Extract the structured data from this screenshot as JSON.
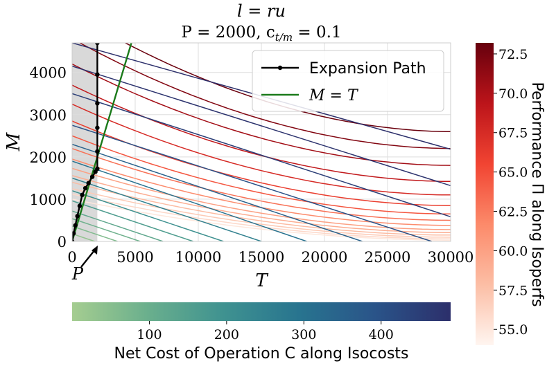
{
  "chart_data": {
    "type": "line",
    "title_line1": "l = ru",
    "title_line2": "P = 2000, c_{t/m} = 0.1",
    "title_line2_display": "P = 2000, c",
    "title_line2_sub": "t/m",
    "title_line2_tail": " = 0.1",
    "xlabel": "T",
    "ylabel": "M",
    "xlim": [
      0,
      30000
    ],
    "ylim": [
      0,
      4700
    ],
    "x_ticks": [
      0,
      5000,
      10000,
      15000,
      20000,
      25000,
      30000
    ],
    "y_ticks": [
      0,
      1000,
      2000,
      3000,
      4000
    ],
    "grid": true,
    "shaded_region": {
      "x_from": 0,
      "x_to": 2000,
      "color": "#d9d9d9"
    },
    "p_marker": {
      "label": "P",
      "x": 2000
    },
    "legend": {
      "position": "top-right",
      "entries": [
        {
          "label": "Expansion Path",
          "color": "#000000",
          "style": "line-dot"
        },
        {
          "label": "M = T",
          "color": "#1a7a1a",
          "style": "line"
        }
      ]
    },
    "expansion_path": {
      "x": [
        0,
        120,
        260,
        420,
        600,
        800,
        1050,
        1300,
        1600,
        1850,
        2000,
        2000,
        2000,
        2000,
        2000,
        2000,
        2000
      ],
      "y": [
        0,
        190,
        380,
        600,
        840,
        1100,
        1260,
        1380,
        1530,
        1650,
        1720,
        2130,
        2690,
        3270,
        3950,
        4700,
        4700
      ]
    },
    "m_equals_t": {
      "x": [
        0,
        4700
      ],
      "y": [
        0,
        4700
      ]
    },
    "isocosts": {
      "colormap": "crest",
      "colorbar_label": "Net Cost of Operation C along Isocosts",
      "colorbar_ticks": [
        100,
        200,
        300,
        400
      ],
      "range": [
        0,
        490
      ],
      "series": [
        {
          "C": 30,
          "y_intercept": 180,
          "x_intercept": 1800
        },
        {
          "C": 60,
          "y_intercept": 360,
          "x_intercept": 3600
        },
        {
          "C": 90,
          "y_intercept": 540,
          "x_intercept": 5400
        },
        {
          "C": 120,
          "y_intercept": 720,
          "x_intercept": 7200
        },
        {
          "C": 160,
          "y_intercept": 960,
          "x_intercept": 9600
        },
        {
          "C": 200,
          "y_intercept": 1200,
          "x_intercept": 12000
        },
        {
          "C": 250,
          "y_intercept": 1500,
          "x_intercept": 15000
        },
        {
          "C": 300,
          "y_intercept": 1900,
          "x_intercept": 18600
        },
        {
          "C": 350,
          "y_intercept": 2300,
          "x_intercept": 23000
        },
        {
          "C": 400,
          "y_intercept": 2750,
          "x_intercept": 28500
        },
        {
          "C": 450,
          "y_intercept": 3500,
          "x_intercept": 36000
        },
        {
          "C": 480,
          "y_intercept": 4150,
          "x_intercept": 44000
        },
        {
          "C": 490,
          "y_intercept": 4700,
          "x_intercept": 56000
        }
      ]
    },
    "isoperfs": {
      "colormap": "reds",
      "colorbar_label": "Performance Π along Isoperfs",
      "colorbar_ticks": [
        55.0,
        57.5,
        60.0,
        62.5,
        65.0,
        67.5,
        70.0,
        72.5
      ],
      "range": [
        54.0,
        73.2
      ],
      "series": [
        {
          "Pi": 55.0,
          "y_at_x0": 1000,
          "y_at_x30000": 30
        },
        {
          "Pi": 56.0,
          "y_at_x0": 1120,
          "y_at_x30000": 60
        },
        {
          "Pi": 57.0,
          "y_at_x0": 1250,
          "y_at_x30000": 100
        },
        {
          "Pi": 58.0,
          "y_at_x0": 1400,
          "y_at_x30000": 150
        },
        {
          "Pi": 59.0,
          "y_at_x0": 1560,
          "y_at_x30000": 210
        },
        {
          "Pi": 60.0,
          "y_at_x0": 1730,
          "y_at_x30000": 280
        },
        {
          "Pi": 61.5,
          "y_at_x0": 1950,
          "y_at_x30000": 380
        },
        {
          "Pi": 63.0,
          "y_at_x0": 2200,
          "y_at_x30000": 500
        },
        {
          "Pi": 64.5,
          "y_at_x0": 2500,
          "y_at_x30000": 650
        },
        {
          "Pi": 66.0,
          "y_at_x0": 2850,
          "y_at_x30000": 850
        },
        {
          "Pi": 67.5,
          "y_at_x0": 3250,
          "y_at_x30000": 1100
        },
        {
          "Pi": 69.0,
          "y_at_x0": 3700,
          "y_at_x30000": 1420
        },
        {
          "Pi": 70.5,
          "y_at_x0": 4200,
          "y_at_x30000": 1800
        },
        {
          "Pi": 72.0,
          "y_at_x0": 4800,
          "y_at_x30000": 2200
        },
        {
          "Pi": 73.0,
          "y_at_x0": 5400,
          "y_at_x30000": 2600
        }
      ]
    }
  }
}
